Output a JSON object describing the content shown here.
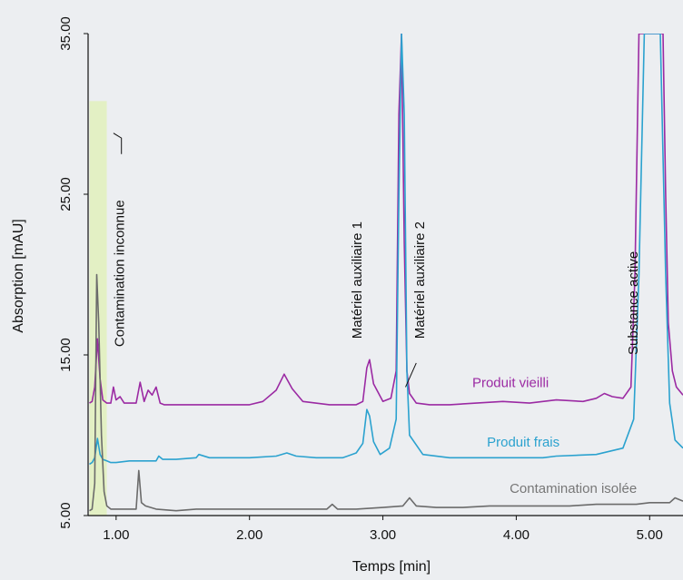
{
  "chart_data": {
    "type": "line",
    "xlabel": "Temps [min]",
    "ylabel": "Absorption [mAU]",
    "xlim": [
      0.79,
      5.25
    ],
    "ylim": [
      5.0,
      35.0
    ],
    "x_ticks": [
      1.0,
      2.0,
      3.0,
      4.0,
      5.0
    ],
    "x_tick_labels": [
      "1.00",
      "2.00",
      "3.00",
      "4.00",
      "5.00"
    ],
    "y_ticks": [
      5.0,
      15.0,
      25.0,
      35.0
    ],
    "y_tick_labels": [
      "5.00",
      "15.00",
      "25.00",
      "35.00"
    ],
    "grid": false,
    "highlight_region": {
      "x": [
        0.8,
        0.93
      ],
      "y": [
        5.0,
        30.8
      ],
      "color": "#e3f0c4"
    },
    "series": [
      {
        "name": "Produit vieilli",
        "color": "#9b2aa3",
        "x": [
          0.8,
          0.82,
          0.84,
          0.86,
          0.88,
          0.9,
          0.93,
          0.96,
          0.98,
          1.0,
          1.03,
          1.06,
          1.1,
          1.15,
          1.18,
          1.21,
          1.24,
          1.27,
          1.3,
          1.33,
          1.36,
          1.4,
          1.6,
          1.8,
          2.0,
          2.1,
          2.2,
          2.26,
          2.32,
          2.4,
          2.6,
          2.8,
          2.85,
          2.88,
          2.9,
          2.93,
          3.0,
          3.06,
          3.1,
          3.12,
          3.14,
          3.16,
          3.18,
          3.2,
          3.25,
          3.35,
          3.5,
          3.7,
          3.9,
          4.1,
          4.3,
          4.5,
          4.6,
          4.66,
          4.72,
          4.8,
          4.86,
          4.89,
          4.92,
          4.95,
          4.99,
          5.03,
          5.07,
          5.1,
          5.12,
          5.14,
          5.17,
          5.2,
          5.25
        ],
        "values": [
          12.0,
          12.1,
          13.0,
          16.0,
          13.5,
          12.2,
          12.0,
          12.0,
          13.0,
          12.2,
          12.4,
          12.0,
          12.0,
          12.0,
          13.3,
          12.1,
          12.8,
          12.5,
          13.0,
          12.0,
          11.9,
          11.9,
          11.9,
          11.9,
          11.9,
          12.1,
          12.8,
          13.8,
          12.9,
          12.1,
          11.9,
          11.9,
          12.1,
          14.2,
          14.7,
          13.2,
          12.1,
          12.3,
          14.0,
          30.0,
          35.0,
          22.0,
          14.0,
          12.6,
          12.0,
          11.9,
          11.9,
          12.0,
          12.1,
          12.0,
          12.2,
          12.1,
          12.3,
          12.6,
          12.4,
          12.3,
          13.0,
          20.0,
          35.0,
          35.0,
          35.0,
          35.0,
          35.0,
          35.0,
          25.0,
          17.0,
          14.0,
          13.0,
          12.5
        ]
      },
      {
        "name": "Produit frais",
        "color": "#2ba2cf",
        "x": [
          0.8,
          0.82,
          0.84,
          0.86,
          0.88,
          0.9,
          0.93,
          0.96,
          1.0,
          1.1,
          1.2,
          1.3,
          1.32,
          1.35,
          1.45,
          1.6,
          1.62,
          1.7,
          1.8,
          2.0,
          2.2,
          2.28,
          2.35,
          2.5,
          2.7,
          2.8,
          2.85,
          2.88,
          2.9,
          2.93,
          2.98,
          3.05,
          3.1,
          3.12,
          3.14,
          3.16,
          3.18,
          3.2,
          3.3,
          3.5,
          3.7,
          3.9,
          4.2,
          4.3,
          4.6,
          4.8,
          4.88,
          4.92,
          4.96,
          5.0,
          5.04,
          5.08,
          5.12,
          5.15,
          5.19,
          5.25
        ],
        "values": [
          8.2,
          8.3,
          8.6,
          9.8,
          8.8,
          8.5,
          8.4,
          8.3,
          8.3,
          8.4,
          8.4,
          8.4,
          8.7,
          8.5,
          8.5,
          8.6,
          8.8,
          8.6,
          8.6,
          8.6,
          8.7,
          8.9,
          8.7,
          8.6,
          8.6,
          8.9,
          9.5,
          11.6,
          11.2,
          9.6,
          8.8,
          9.2,
          11.0,
          25.0,
          35.0,
          30.0,
          14.0,
          10.0,
          8.8,
          8.6,
          8.6,
          8.6,
          8.6,
          8.7,
          8.8,
          9.2,
          11.0,
          20.0,
          35.0,
          35.0,
          35.0,
          35.0,
          20.0,
          12.0,
          9.7,
          9.2
        ]
      },
      {
        "name": "Contamination isolée",
        "color": "#6b6b6b",
        "x": [
          0.8,
          0.82,
          0.84,
          0.855,
          0.87,
          0.89,
          0.91,
          0.93,
          0.96,
          1.0,
          1.1,
          1.15,
          1.17,
          1.19,
          1.22,
          1.3,
          1.45,
          1.6,
          1.8,
          2.0,
          2.2,
          2.4,
          2.58,
          2.62,
          2.66,
          2.8,
          3.0,
          3.15,
          3.2,
          3.25,
          3.4,
          3.6,
          3.8,
          4.0,
          4.2,
          4.4,
          4.6,
          4.8,
          4.9,
          5.0,
          5.1,
          5.15,
          5.19,
          5.25
        ],
        "values": [
          5.3,
          5.4,
          7.0,
          20.0,
          17.0,
          10.0,
          6.5,
          5.6,
          5.4,
          5.4,
          5.4,
          5.4,
          7.8,
          5.8,
          5.6,
          5.4,
          5.3,
          5.4,
          5.4,
          5.4,
          5.4,
          5.4,
          5.4,
          5.7,
          5.4,
          5.4,
          5.5,
          5.6,
          6.1,
          5.6,
          5.5,
          5.5,
          5.6,
          5.6,
          5.6,
          5.6,
          5.7,
          5.7,
          5.7,
          5.8,
          5.8,
          5.8,
          6.1,
          5.9
        ]
      }
    ],
    "annotations": [
      {
        "text": "Produit vieilli",
        "color": "#9b2aa3",
        "x": 3.67,
        "y": 13.0,
        "rotate": 0
      },
      {
        "text": "Produit frais",
        "color": "#2ba2cf",
        "x": 3.78,
        "y": 9.3,
        "rotate": 0
      },
      {
        "text": "Contamination isolée",
        "color": "#777777",
        "x": 3.95,
        "y": 6.4,
        "rotate": 0
      },
      {
        "text": "Contamination inconnue",
        "color": "#111111",
        "x": 1.06,
        "y": 15.5,
        "rotate": -90
      },
      {
        "text": "Matériel auxiliaire 1",
        "color": "#111111",
        "x": 2.84,
        "y": 16.0,
        "rotate": -90
      },
      {
        "text": "Matériel auxiliaire 2",
        "color": "#111111",
        "x": 3.31,
        "y": 16.0,
        "rotate": -90
      },
      {
        "text": "Substance active",
        "color": "#111111",
        "x": 4.91,
        "y": 15.0,
        "rotate": -90
      }
    ],
    "leader_lines": [
      {
        "points": [
          [
            0.98,
            28.8
          ],
          [
            1.04,
            28.5
          ],
          [
            1.04,
            27.5
          ]
        ]
      },
      {
        "points": [
          [
            3.17,
            13.0
          ],
          [
            3.25,
            14.5
          ]
        ]
      }
    ]
  }
}
